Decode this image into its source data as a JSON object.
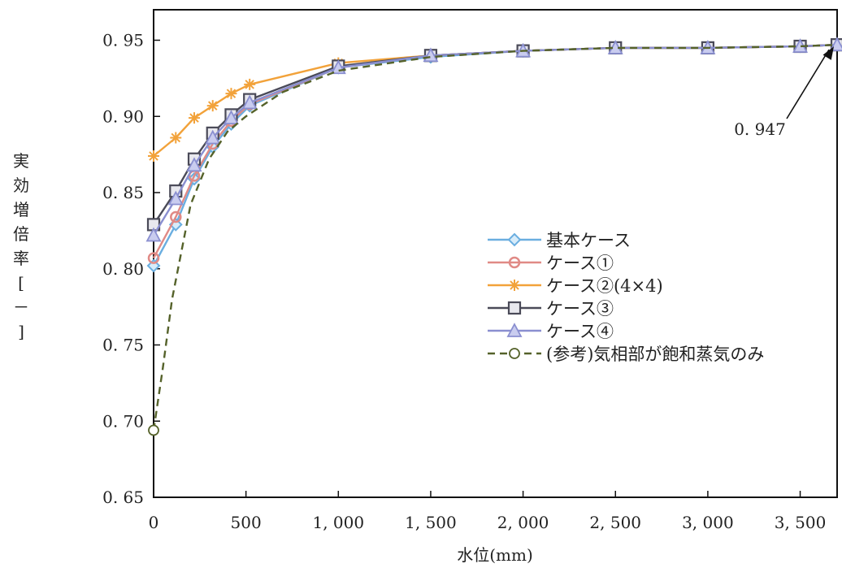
{
  "chart_data": {
    "type": "line",
    "title": "",
    "xlabel": "水位(mm)",
    "ylabel": "実効増倍率[－]",
    "xlim": [
      0,
      3700
    ],
    "ylim": [
      0.65,
      0.97
    ],
    "x_ticks": [
      0,
      500,
      1000,
      1500,
      2000,
      2500,
      3000,
      3500
    ],
    "x_tick_labels": [
      "0",
      "500",
      "1, 000",
      "1, 500",
      "2, 000",
      "2, 500",
      "3, 000",
      "3, 500"
    ],
    "y_ticks": [
      0.65,
      0.7,
      0.75,
      0.8,
      0.85,
      0.9,
      0.95
    ],
    "y_tick_labels": [
      "0. 65",
      "0. 70",
      "0. 75",
      "0. 80",
      "0. 85",
      "0. 90",
      "0. 95"
    ],
    "grid": false,
    "legend_position": "center-right",
    "annotation": {
      "text": "0. 947",
      "x": 3700,
      "y": 0.947
    },
    "series": [
      {
        "name": "基本ケース",
        "color": "#6aaee0",
        "marker": "diamond",
        "dash": "solid",
        "x": [
          0,
          120,
          220,
          320,
          420,
          520,
          1000,
          1500,
          2000,
          2500,
          3000,
          3500,
          3700
        ],
        "y": [
          0.802,
          0.829,
          0.859,
          0.88,
          0.895,
          0.907,
          0.932,
          0.939,
          0.943,
          0.945,
          0.945,
          0.946,
          0.947
        ]
      },
      {
        "name": "ケース①",
        "color": "#e08a86",
        "marker": "circle",
        "dash": "solid",
        "x": [
          0,
          120,
          220,
          320,
          420,
          520,
          1000,
          1500,
          2000,
          2500,
          3000,
          3500,
          3700
        ],
        "y": [
          0.807,
          0.834,
          0.861,
          0.882,
          0.897,
          0.908,
          0.932,
          0.94,
          0.943,
          0.945,
          0.945,
          0.946,
          0.947
        ]
      },
      {
        "name": "ケース②(4×4)",
        "color": "#f2a23a",
        "marker": "asterisk",
        "dash": "solid",
        "x": [
          0,
          120,
          220,
          320,
          420,
          520,
          1000,
          1500,
          2000,
          2500,
          3000,
          3500,
          3700
        ],
        "y": [
          0.874,
          0.886,
          0.899,
          0.907,
          0.915,
          0.921,
          0.935,
          0.94,
          0.943,
          0.945,
          0.945,
          0.946,
          0.947
        ]
      },
      {
        "name": "ケース③",
        "color": "#4a4a58",
        "marker": "square",
        "dash": "solid",
        "x": [
          0,
          120,
          220,
          320,
          420,
          520,
          1000,
          1500,
          2000,
          2500,
          3000,
          3500,
          3700
        ],
        "y": [
          0.829,
          0.851,
          0.872,
          0.889,
          0.901,
          0.911,
          0.933,
          0.94,
          0.943,
          0.945,
          0.945,
          0.946,
          0.947
        ]
      },
      {
        "name": "ケース④",
        "color": "#8a8fd0",
        "marker": "triangle",
        "dash": "solid",
        "x": [
          0,
          120,
          220,
          320,
          420,
          520,
          1000,
          1500,
          2000,
          2500,
          3000,
          3500,
          3700
        ],
        "y": [
          0.822,
          0.846,
          0.868,
          0.886,
          0.899,
          0.909,
          0.932,
          0.94,
          0.943,
          0.945,
          0.945,
          0.946,
          0.947
        ]
      },
      {
        "name": "(参考)気相部が飽和蒸気のみ",
        "color": "#55622a",
        "marker": "open-circle",
        "dash": "dashed",
        "marker_points": [
          0
        ],
        "x": [
          0,
          50,
          100,
          200,
          300,
          400,
          500,
          700,
          1000,
          1500,
          2000,
          2500,
          3000,
          3500,
          3700
        ],
        "y": [
          0.694,
          0.735,
          0.78,
          0.842,
          0.872,
          0.89,
          0.9,
          0.916,
          0.93,
          0.939,
          0.943,
          0.945,
          0.945,
          0.946,
          0.947
        ]
      }
    ]
  }
}
